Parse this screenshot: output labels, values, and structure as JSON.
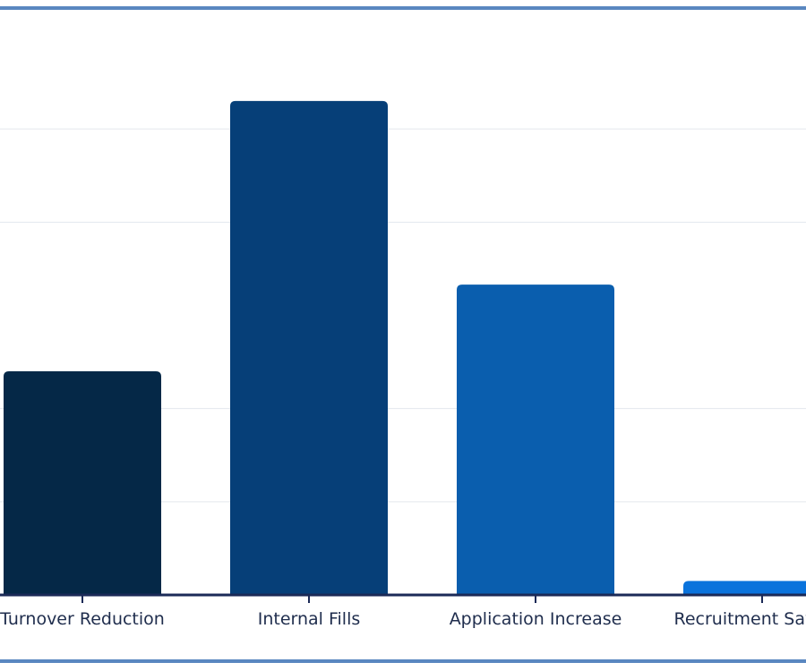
{
  "chart_data": {
    "type": "bar",
    "categories": [
      "Turnover Reduction",
      "Internal Fills",
      "Application Increase",
      "Recruitment Savings"
    ],
    "values": [
      24,
      53,
      33.3,
      1.5
    ],
    "colors": [
      "#052847",
      "#063f78",
      "#0a5eae",
      "#0a73dc"
    ],
    "ylim": [
      0,
      60
    ],
    "grid": true,
    "title": "",
    "xlabel": "",
    "ylabel": ""
  }
}
